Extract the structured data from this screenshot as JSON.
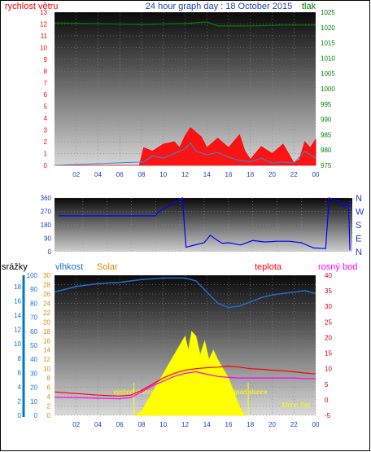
{
  "header": {
    "left_label": "rychlost větru",
    "title": "24 hour graph day : 18 October 2015",
    "right_label": "tlak"
  },
  "bottom_header": {
    "srazky": "srážky",
    "vlhkost": "vlhkost",
    "solar": "Solar",
    "teplota": "teplota",
    "rosny_bod": "rosný bod"
  },
  "colors": {
    "wind": "#ff0000",
    "gust": "#0000ff",
    "pressure": "#008000",
    "direction": "#0000ff",
    "humidity": "#1e6fd0",
    "solar": "#ffff00",
    "temperature": "#ff0000",
    "dewpoint": "#ff00ff",
    "rain": "#0077cc",
    "title": "#1f3fbf"
  },
  "chart_data": [
    {
      "type": "area",
      "name": "wind-pressure",
      "x_ticks": [
        "02",
        "04",
        "06",
        "08",
        "10",
        "12",
        "14",
        "16",
        "18",
        "20",
        "22",
        "00"
      ],
      "y_left_ticks": [
        "0",
        "1",
        "2",
        "3",
        "4",
        "5",
        "6",
        "7",
        "8",
        "9",
        "10",
        "11",
        "12",
        "13"
      ],
      "y_left_range": [
        0,
        13
      ],
      "y_right_ticks": [
        "975",
        "980",
        "985",
        "990",
        "995",
        "1000",
        "1005",
        "1010",
        "1015",
        "1020",
        "1025"
      ],
      "y_right_range": [
        975,
        1025
      ],
      "pressure": {
        "x": [
          0,
          8,
          12,
          14,
          15,
          18,
          21,
          24
        ],
        "y": [
          1021.5,
          1021,
          1021.3,
          1021.8,
          1020.5,
          1020.5,
          1020.8,
          1020.8
        ]
      },
      "wind": {
        "x": [
          0,
          7.8,
          8.2,
          9,
          10,
          11,
          11.5,
          12,
          12.5,
          13,
          13.5,
          14,
          15,
          16,
          17,
          17.5,
          18,
          19,
          20,
          21,
          22,
          22.5,
          23,
          23.5,
          24
        ],
        "y": [
          0,
          0,
          1.5,
          1.2,
          1.8,
          2.0,
          1.5,
          2.5,
          3.2,
          2.8,
          2.4,
          1.5,
          2.3,
          1.5,
          2.6,
          1.2,
          0.5,
          1.6,
          1.0,
          1.8,
          0.2,
          0.5,
          2.0,
          1.5,
          2.2
        ]
      },
      "gust": {
        "x": [
          0,
          8.2,
          9,
          10,
          11,
          12,
          12.5,
          13,
          14,
          15,
          16,
          17,
          18,
          19,
          20,
          21,
          22,
          23,
          24
        ],
        "y": [
          0,
          0.3,
          0.8,
          0.6,
          1.0,
          1.4,
          1.9,
          1.2,
          0.9,
          1.1,
          0.7,
          0.4,
          0.3,
          0.6,
          0.2,
          0.3,
          0.2,
          1.2,
          0.6
        ]
      }
    },
    {
      "type": "line",
      "name": "wind-direction",
      "y_ticks": [
        "0",
        "90",
        "180",
        "270",
        "360"
      ],
      "y_range": [
        0,
        360
      ],
      "cardinal_labels": [
        "N",
        "W",
        "S",
        "E",
        "N"
      ],
      "x": [
        0,
        8,
        8.2,
        10.2,
        10.5,
        12,
        12.5,
        13,
        13.5,
        14,
        15,
        16,
        17,
        18,
        19,
        20,
        21,
        22,
        22.3,
        22.8,
        23,
        23.5,
        23.9,
        24
      ],
      "y": [
        240,
        240,
        265,
        360,
        30,
        60,
        110,
        80,
        55,
        60,
        45,
        75,
        65,
        70,
        70,
        60,
        25,
        20,
        360,
        340,
        345,
        300,
        330,
        10
      ]
    },
    {
      "type": "line",
      "name": "temp-humidity-solar",
      "y_srazky_ticks": [
        "0",
        "2",
        "4",
        "6",
        "8",
        "10",
        "12",
        "14",
        "16",
        "18"
      ],
      "y_srazky_range": [
        0,
        18
      ],
      "y_humidity_ticks": [
        "0",
        "10",
        "20",
        "30",
        "40",
        "50",
        "60",
        "70",
        "80",
        "90",
        "100"
      ],
      "y_humidity_range": [
        0,
        100
      ],
      "y_solar_ticks": [
        "0",
        "2",
        "4",
        "6",
        "8",
        "10",
        "12",
        "14",
        "16",
        "18",
        "20",
        "22",
        "24",
        "26",
        "28",
        "30"
      ],
      "y_solar_range": [
        0,
        30
      ],
      "y_temp_ticks": [
        "-5",
        "0",
        "5",
        "10",
        "15",
        "20",
        "25",
        "30",
        "35",
        "40"
      ],
      "y_temp_range": [
        -5,
        40
      ],
      "annotations": [
        "východ slunce",
        "západ slunce",
        "Moon Rise",
        "Moon Set"
      ],
      "annotation_x": [
        7.3,
        17.8,
        12.0,
        22.2
      ],
      "humidity": {
        "x": [
          0,
          2,
          4,
          6,
          8,
          10,
          12,
          13,
          14,
          15,
          16,
          17,
          18,
          19,
          20,
          21,
          22,
          23,
          24
        ],
        "y": [
          88,
          92,
          94,
          95,
          97,
          98,
          98,
          96,
          88,
          80,
          77,
          78,
          81,
          84,
          86,
          87,
          88,
          89,
          87
        ]
      },
      "temperature": {
        "x": [
          0,
          2,
          4,
          6,
          7,
          8,
          9,
          10,
          11,
          12,
          13,
          14,
          15,
          16,
          17,
          18,
          19,
          20,
          21,
          22,
          23,
          24
        ],
        "y": [
          2.5,
          2.0,
          1.5,
          1.2,
          1.5,
          3.0,
          5.0,
          7.0,
          8.5,
          9.5,
          10.0,
          10.3,
          10.5,
          10.8,
          10.5,
          10.0,
          9.8,
          9.5,
          9.3,
          9.0,
          8.6,
          8.3
        ]
      },
      "dewpoint": {
        "x": [
          0,
          2,
          4,
          6,
          7,
          8,
          9,
          10,
          11,
          12,
          13,
          14,
          15,
          16,
          17,
          18,
          19,
          20,
          21,
          22,
          23,
          24
        ],
        "y": [
          0.8,
          0.7,
          0.5,
          0.3,
          0.7,
          2.5,
          4.5,
          6.0,
          7.5,
          8.5,
          9.0,
          8.2,
          7.5,
          7.2,
          7.0,
          7.0,
          7.0,
          7.0,
          7.0,
          7.0,
          6.8,
          6.8
        ]
      },
      "solar": {
        "x": [
          7.3,
          8,
          8.5,
          9,
          9.5,
          10,
          10.5,
          11,
          11.5,
          12,
          12.3,
          12.6,
          13,
          13.4,
          13.8,
          14.2,
          14.6,
          15,
          15.5,
          16,
          16.5,
          17,
          17.5
        ],
        "y": [
          0,
          1,
          3,
          5,
          7,
          9,
          11,
          13,
          15,
          17,
          14,
          18,
          17,
          13,
          16,
          12,
          14,
          12,
          10,
          8,
          5,
          2,
          0
        ]
      }
    }
  ]
}
